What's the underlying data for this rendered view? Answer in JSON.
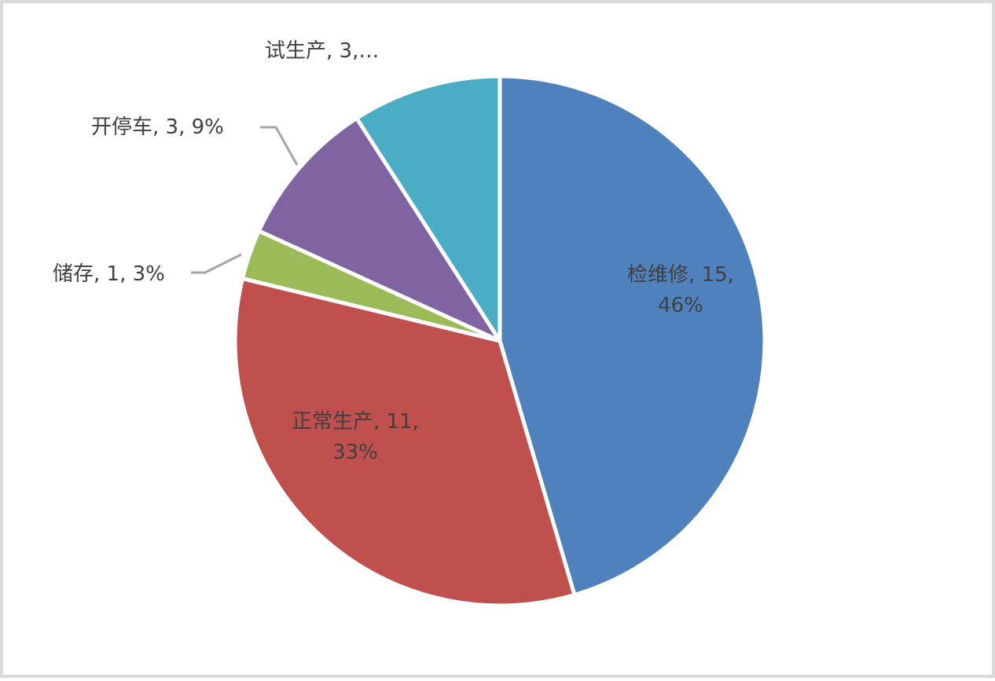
{
  "chart_data": {
    "type": "pie",
    "title": "",
    "legend_position": "none",
    "start_angle_deg": 0,
    "direction": "clockwise",
    "total": 33,
    "label_format": "category, value, percent",
    "slices": [
      {
        "key": "jianweixiu",
        "name": "检维修",
        "value": 15,
        "pct": "46%",
        "color": "#4F81BD",
        "label_position": "inside"
      },
      {
        "key": "zhengchangshengchan",
        "name": "正常生产",
        "value": 11,
        "pct": "33%",
        "color": "#C0504D",
        "label_position": "inside"
      },
      {
        "key": "chucun",
        "name": "储存",
        "value": 1,
        "pct": "3%",
        "color": "#9BBB59",
        "label_position": "outside"
      },
      {
        "key": "kaitingche",
        "name": "开停车",
        "value": 3,
        "pct": "9%",
        "color": "#8064A2",
        "label_position": "outside"
      },
      {
        "key": "shishengchan",
        "name": "试生产",
        "value": 3,
        "pct": "9%",
        "color": "#4BACC6",
        "label_position": "outside-truncated"
      }
    ]
  },
  "labels": {
    "shishengchan": "试生产, 3,…",
    "kaitingche": "开停车, 3, 9%",
    "chucun": "储存, 1, 3%",
    "zhengchangshengchan_line1": "正常生产, 11,",
    "zhengchangshengchan_line2": "33%",
    "jianweixiu_line1": "检维修, 15,",
    "jianweixiu_line2": "46%"
  },
  "colors": {
    "label_text": "#404040",
    "leader_line": "#A6A6A6",
    "slice_gap": "#FFFFFF",
    "background": "#FFFFFF",
    "border": "#DBDBDB"
  }
}
